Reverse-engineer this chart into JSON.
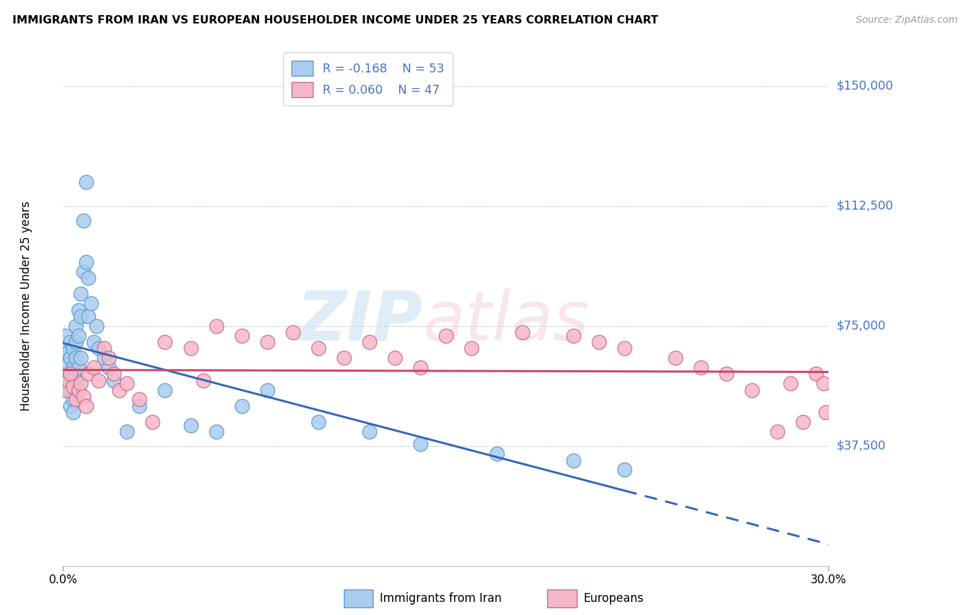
{
  "title": "IMMIGRANTS FROM IRAN VS EUROPEAN HOUSEHOLDER INCOME UNDER 25 YEARS CORRELATION CHART",
  "source": "Source: ZipAtlas.com",
  "ylabel": "Householder Income Under 25 years",
  "xlim": [
    0.0,
    0.3
  ],
  "ylim": [
    0,
    162500
  ],
  "yticks": [
    37500,
    75000,
    112500,
    150000
  ],
  "ytick_labels": [
    "$37,500",
    "$75,000",
    "$112,500",
    "$150,000"
  ],
  "blue_face": "#aaccee",
  "blue_edge": "#5599cc",
  "pink_face": "#f5b8c8",
  "pink_edge": "#cc6688",
  "blue_line": "#3366bb",
  "pink_line": "#cc4466",
  "iran_x": [
    0.001,
    0.001,
    0.001,
    0.002,
    0.002,
    0.002,
    0.002,
    0.003,
    0.003,
    0.003,
    0.003,
    0.003,
    0.004,
    0.004,
    0.004,
    0.004,
    0.004,
    0.005,
    0.005,
    0.005,
    0.005,
    0.006,
    0.006,
    0.006,
    0.007,
    0.007,
    0.007,
    0.008,
    0.008,
    0.009,
    0.009,
    0.01,
    0.01,
    0.011,
    0.012,
    0.013,
    0.014,
    0.016,
    0.018,
    0.02,
    0.025,
    0.03,
    0.04,
    0.05,
    0.06,
    0.07,
    0.08,
    0.1,
    0.12,
    0.14,
    0.17,
    0.2,
    0.22
  ],
  "iran_y": [
    66000,
    72000,
    60000,
    67000,
    55000,
    63000,
    58000,
    70000,
    65000,
    60000,
    55000,
    50000,
    68000,
    62000,
    57000,
    52000,
    48000,
    75000,
    70000,
    65000,
    58000,
    80000,
    72000,
    62000,
    85000,
    78000,
    65000,
    92000,
    108000,
    120000,
    95000,
    90000,
    78000,
    82000,
    70000,
    75000,
    68000,
    65000,
    62000,
    58000,
    42000,
    50000,
    55000,
    44000,
    42000,
    50000,
    55000,
    45000,
    42000,
    38000,
    35000,
    33000,
    30000
  ],
  "euro_x": [
    0.001,
    0.002,
    0.003,
    0.004,
    0.005,
    0.006,
    0.007,
    0.008,
    0.009,
    0.01,
    0.012,
    0.014,
    0.016,
    0.018,
    0.02,
    0.022,
    0.025,
    0.03,
    0.035,
    0.04,
    0.05,
    0.055,
    0.06,
    0.07,
    0.08,
    0.09,
    0.1,
    0.11,
    0.12,
    0.13,
    0.14,
    0.15,
    0.16,
    0.18,
    0.2,
    0.21,
    0.22,
    0.24,
    0.25,
    0.26,
    0.27,
    0.28,
    0.285,
    0.29,
    0.295,
    0.298,
    0.299
  ],
  "euro_y": [
    55000,
    58000,
    60000,
    56000,
    52000,
    55000,
    57000,
    53000,
    50000,
    60000,
    62000,
    58000,
    68000,
    65000,
    60000,
    55000,
    57000,
    52000,
    45000,
    70000,
    68000,
    58000,
    75000,
    72000,
    70000,
    73000,
    68000,
    65000,
    70000,
    65000,
    62000,
    72000,
    68000,
    73000,
    72000,
    70000,
    68000,
    65000,
    62000,
    60000,
    55000,
    42000,
    57000,
    45000,
    60000,
    57000,
    48000
  ]
}
